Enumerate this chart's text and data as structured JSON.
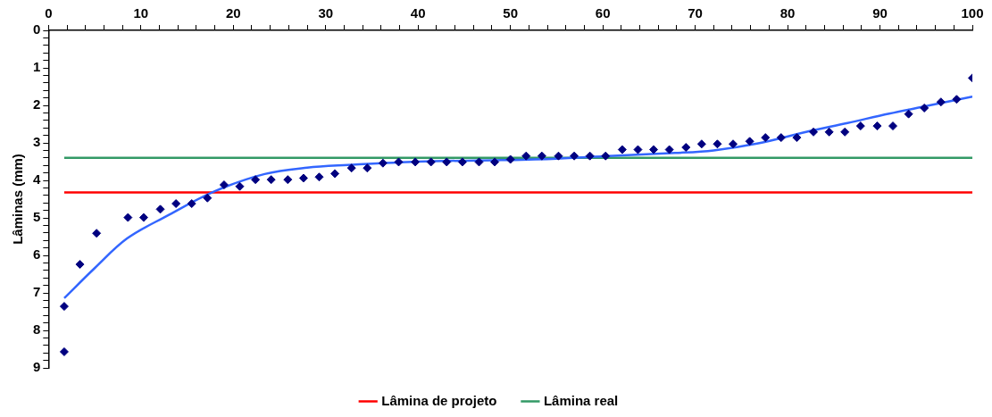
{
  "chart_data": {
    "type": "scatter",
    "ylabel": "Lâminas (mm)",
    "xlim": [
      0,
      100
    ],
    "ylim": [
      9,
      0
    ],
    "xticks": [
      0,
      {
        "value": 2,
        "label": null
      },
      {
        "value": 4,
        "label": null
      },
      {
        "value": 6,
        "label": null
      },
      {
        "value": 8,
        "label": null
      },
      10,
      {
        "value": 12,
        "label": null
      },
      {
        "value": 14,
        "label": null
      },
      {
        "value": 16,
        "label": null
      },
      {
        "value": 18,
        "label": null
      },
      20,
      {
        "value": 22,
        "label": null
      },
      {
        "value": 24,
        "label": null
      },
      {
        "value": 26,
        "label": null
      },
      {
        "value": 28,
        "label": null
      },
      30,
      {
        "value": 32,
        "label": null
      },
      {
        "value": 34,
        "label": null
      },
      {
        "value": 36,
        "label": null
      },
      {
        "value": 38,
        "label": null
      },
      40,
      {
        "value": 42,
        "label": null
      },
      {
        "value": 44,
        "label": null
      },
      {
        "value": 46,
        "label": null
      },
      {
        "value": 48,
        "label": null
      },
      50,
      {
        "value": 52,
        "label": null
      },
      {
        "value": 54,
        "label": null
      },
      {
        "value": 56,
        "label": null
      },
      {
        "value": 58,
        "label": null
      },
      60,
      {
        "value": 62,
        "label": null
      },
      {
        "value": 64,
        "label": null
      },
      {
        "value": 66,
        "label": null
      },
      {
        "value": 68,
        "label": null
      },
      70,
      {
        "value": 72,
        "label": null
      },
      {
        "value": 74,
        "label": null
      },
      {
        "value": 76,
        "label": null
      },
      {
        "value": 78,
        "label": null
      },
      80,
      {
        "value": 82,
        "label": null
      },
      {
        "value": 84,
        "label": null
      },
      {
        "value": 86,
        "label": null
      },
      {
        "value": 88,
        "label": null
      },
      90,
      {
        "value": 92,
        "label": null
      },
      {
        "value": 94,
        "label": null
      },
      {
        "value": 96,
        "label": null
      },
      {
        "value": 98,
        "label": null
      },
      100
    ],
    "yticks": [
      0,
      {
        "value": 0.2,
        "label": null
      },
      {
        "value": 0.4,
        "label": null
      },
      {
        "value": 0.6,
        "label": null
      },
      {
        "value": 0.8,
        "label": null
      },
      1,
      {
        "value": 1.2,
        "label": null
      },
      {
        "value": 1.4,
        "label": null
      },
      {
        "value": 1.6,
        "label": null
      },
      {
        "value": 1.8,
        "label": null
      },
      2,
      {
        "value": 2.2,
        "label": null
      },
      {
        "value": 2.4,
        "label": null
      },
      {
        "value": 2.6,
        "label": null
      },
      {
        "value": 2.8,
        "label": null
      },
      3,
      {
        "value": 3.2,
        "label": null
      },
      {
        "value": 3.4,
        "label": null
      },
      {
        "value": 3.6,
        "label": null
      },
      {
        "value": 3.8,
        "label": null
      },
      4,
      {
        "value": 4.2,
        "label": null
      },
      {
        "value": 4.4,
        "label": null
      },
      {
        "value": 4.6,
        "label": null
      },
      {
        "value": 4.8,
        "label": null
      },
      5,
      {
        "value": 5.2,
        "label": null
      },
      {
        "value": 5.4,
        "label": null
      },
      {
        "value": 5.6,
        "label": null
      },
      {
        "value": 5.8,
        "label": null
      },
      6,
      {
        "value": 6.2,
        "label": null
      },
      {
        "value": 6.4,
        "label": null
      },
      {
        "value": 6.6,
        "label": null
      },
      {
        "value": 6.8,
        "label": null
      },
      7,
      {
        "value": 7.2,
        "label": null
      },
      {
        "value": 7.4,
        "label": null
      },
      {
        "value": 7.6,
        "label": null
      },
      {
        "value": 7.8,
        "label": null
      },
      8,
      {
        "value": 8.2,
        "label": null
      },
      {
        "value": 8.4,
        "label": null
      },
      {
        "value": 8.6,
        "label": null
      },
      {
        "value": 8.8,
        "label": null
      },
      9
    ],
    "grid": false,
    "legend": "bottom",
    "series": [
      {
        "marker": "diamond",
        "color": "#000080",
        "x": [
          1.7,
          1.7,
          3.4,
          5.2,
          8.6,
          10.3,
          12.1,
          13.8,
          15.5,
          17.2,
          19.0,
          20.7,
          22.4,
          24.1,
          25.9,
          27.6,
          29.3,
          31.0,
          32.8,
          34.5,
          36.2,
          37.9,
          39.7,
          41.4,
          43.1,
          44.8,
          46.6,
          48.3,
          50.0,
          51.7,
          53.4,
          55.2,
          56.9,
          58.6,
          60.3,
          62.1,
          63.8,
          65.5,
          67.2,
          69.0,
          70.7,
          72.4,
          74.1,
          75.9,
          77.6,
          79.3,
          81.0,
          82.8,
          84.5,
          86.2,
          87.9,
          89.7,
          91.4,
          93.1,
          94.8,
          96.6,
          98.3,
          100
        ],
        "values": [
          7.36,
          8.57,
          6.24,
          5.41,
          4.99,
          4.99,
          4.77,
          4.62,
          4.62,
          4.47,
          4.12,
          4.16,
          3.98,
          3.98,
          3.98,
          3.94,
          3.91,
          3.82,
          3.67,
          3.67,
          3.54,
          3.51,
          3.51,
          3.51,
          3.51,
          3.51,
          3.51,
          3.51,
          3.44,
          3.35,
          3.35,
          3.35,
          3.35,
          3.35,
          3.35,
          3.18,
          3.18,
          3.18,
          3.18,
          3.12,
          3.03,
          3.03,
          3.03,
          2.96,
          2.86,
          2.86,
          2.86,
          2.71,
          2.71,
          2.71,
          2.55,
          2.55,
          2.55,
          2.23,
          2.07,
          1.91,
          1.84,
          1.27
        ]
      },
      {
        "type": "line",
        "marker": "none",
        "color": "#3366ff",
        "x": [
          1.7,
          5,
          8.5,
          12.8,
          18,
          23.4,
          28,
          32.4,
          40,
          49,
          55,
          61.6,
          67.8,
          72,
          76.7,
          82,
          86.5,
          91,
          95,
          100
        ],
        "values": [
          7.14,
          6.34,
          5.55,
          4.95,
          4.29,
          3.83,
          3.66,
          3.59,
          3.5,
          3.46,
          3.42,
          3.34,
          3.27,
          3.2,
          3.02,
          2.71,
          2.47,
          2.22,
          2.02,
          1.77
        ]
      },
      {
        "type": "line",
        "marker": "none",
        "name": "Lâmina de projeto",
        "color": "#ff0000",
        "x": [
          1.7,
          100
        ],
        "values": [
          4.32,
          4.32
        ]
      },
      {
        "type": "line",
        "marker": "none",
        "name": "Lâmina real",
        "color": "#339966",
        "x": [
          1.7,
          100
        ],
        "values": [
          3.4,
          3.4
        ]
      }
    ]
  }
}
